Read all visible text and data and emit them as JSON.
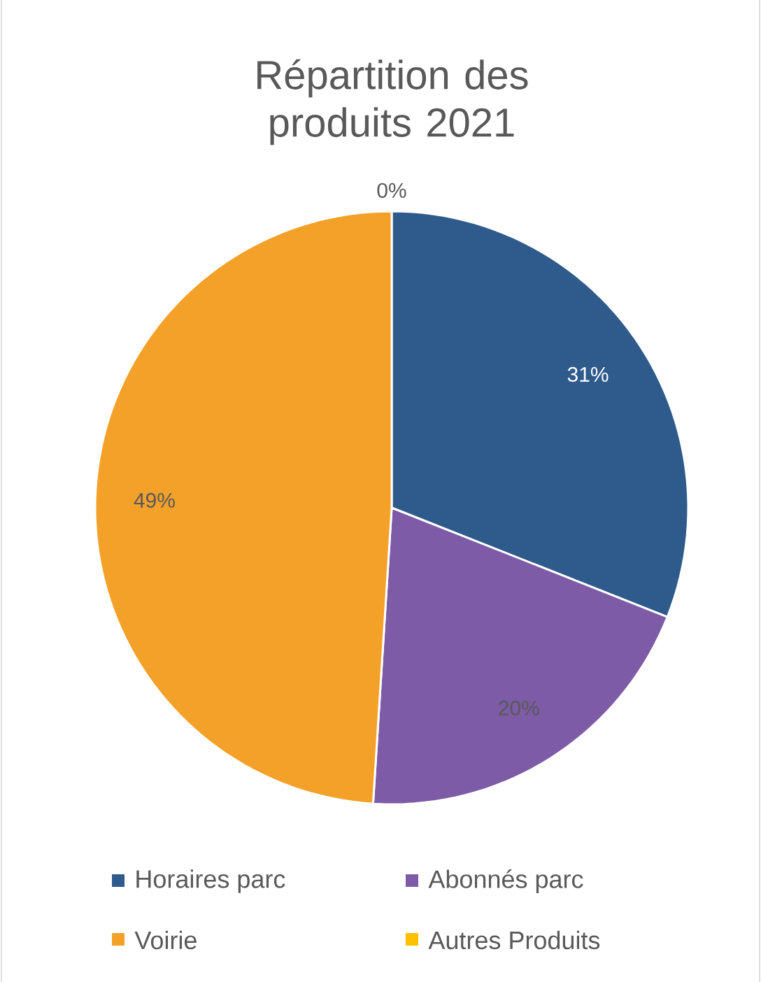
{
  "chart_data": {
    "type": "pie",
    "title": "Répartition des produits 2021",
    "categories": [
      "Horaires parc",
      "Abonnés parc",
      "Voirie",
      "Autres Produits"
    ],
    "values": [
      31,
      20,
      49,
      0
    ],
    "value_labels": [
      "31%",
      "20%",
      "49%",
      "0%"
    ],
    "colors": [
      "#2e5b8c",
      "#7d5ba6",
      "#f4a12a",
      "#ffc000"
    ],
    "legend": "bottom"
  }
}
